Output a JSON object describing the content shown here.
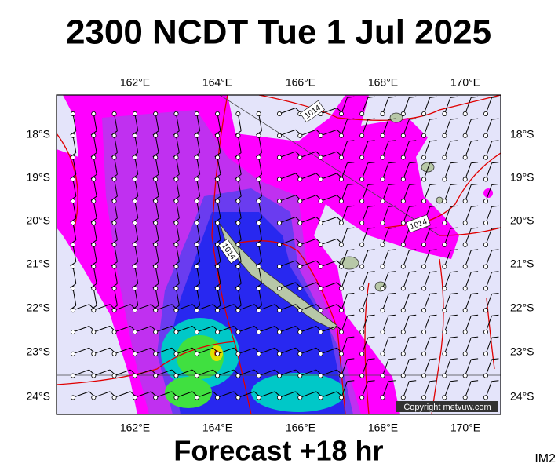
{
  "header": {
    "title": "2300 NCDT Tue 1 Jul 2025"
  },
  "map": {
    "lon_labels": [
      "162°E",
      "164°E",
      "166°E",
      "168°E",
      "170°E"
    ],
    "lat_labels": [
      "18°S",
      "19°S",
      "20°S",
      "21°S",
      "22°S",
      "23°S",
      "24°S"
    ],
    "isobar_labels": [
      "1014",
      "1014",
      "1014"
    ],
    "copyright": "Copyright metvuw.com"
  },
  "footer": {
    "forecast": "Forecast +18 hr",
    "image_id": "IM2"
  }
}
